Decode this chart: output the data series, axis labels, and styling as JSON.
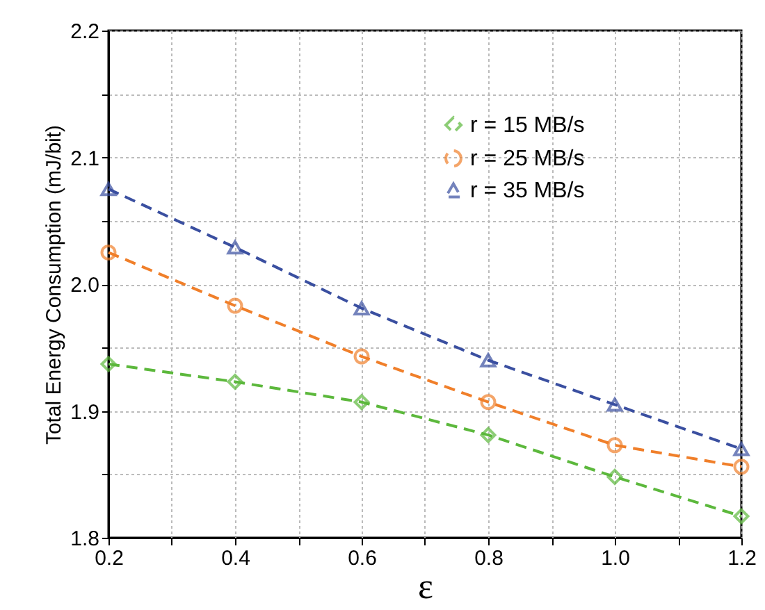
{
  "chart_data": {
    "type": "line",
    "xlabel": "ε",
    "ylabel": "Total Energy Consumption (mJ/bit)",
    "x": [
      0.2,
      0.4,
      0.6,
      0.8,
      1.0,
      1.2
    ],
    "series": [
      {
        "name": "r = 15 MB/s",
        "color": "#5cb83c",
        "marker": "diamond",
        "line_style": "dashed",
        "values": [
          1.937,
          1.923,
          1.907,
          1.881,
          1.848,
          1.817
        ]
      },
      {
        "name": "r = 25 MB/s",
        "color": "#f07f2a",
        "marker": "circle",
        "line_style": "dashed",
        "values": [
          2.025,
          1.983,
          1.943,
          1.907,
          1.873,
          1.856
        ]
      },
      {
        "name": "r = 35 MB/s",
        "color": "#3a4fa0",
        "marker": "triangle",
        "line_style": "dashed",
        "values": [
          2.075,
          2.029,
          1.981,
          1.94,
          1.905,
          1.87
        ]
      }
    ],
    "xlim": [
      0.2,
      1.2
    ],
    "xticks": [
      {
        "value": 0.2,
        "label": "0.2"
      },
      {
        "value": 0.3,
        "label": null
      },
      {
        "value": 0.4,
        "label": "0.4"
      },
      {
        "value": 0.5,
        "label": null
      },
      {
        "value": 0.6,
        "label": "0.6"
      },
      {
        "value": 0.7,
        "label": null
      },
      {
        "value": 0.8,
        "label": "0.8"
      },
      {
        "value": 0.9,
        "label": null
      },
      {
        "value": 1.0,
        "label": "1.0"
      },
      {
        "value": 1.1,
        "label": null
      },
      {
        "value": 1.2,
        "label": "1.2"
      }
    ],
    "ylim": [
      1.8,
      2.2
    ],
    "yticks": [
      1.8,
      {
        "value": 1.85,
        "label": null
      },
      1.9,
      {
        "value": 1.95,
        "label": null
      },
      {
        "value": 2.0,
        "label": "2.0"
      },
      {
        "value": 2.05,
        "label": null
      },
      2.1,
      {
        "value": 2.15,
        "label": null
      },
      2.2
    ],
    "grid": true,
    "legend": "top right"
  }
}
